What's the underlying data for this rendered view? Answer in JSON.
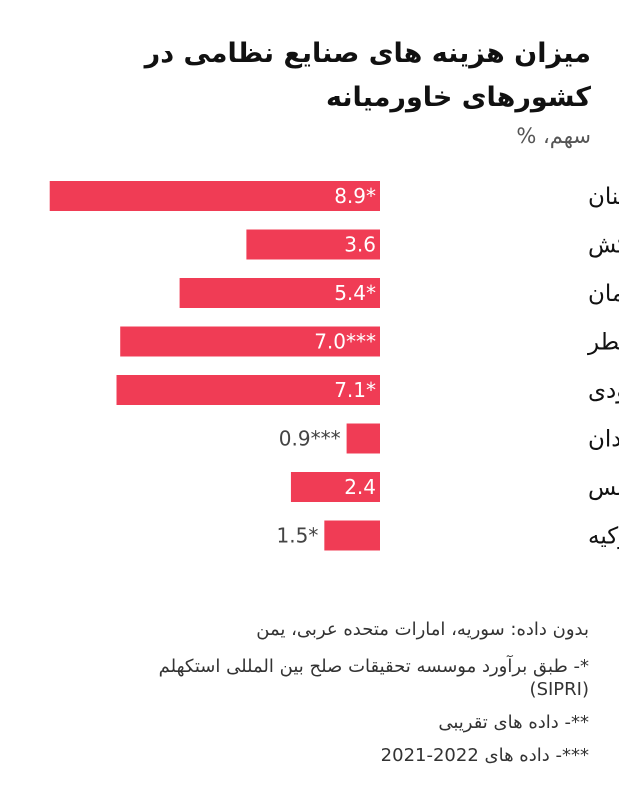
{
  "title": "میزان هزینه های صنایع نظامی در کشورهای خاورمیانه",
  "subtitle": "سهم، %",
  "chart_data": {
    "type": "bar",
    "orientation": "horizontal",
    "title": "میزان هزینه های صنایع نظامی در کشورهای خاورمیانه",
    "unit": "سهم، %",
    "categories": [
      "لبنان",
      "مراکش",
      "عمان",
      "قطر",
      "عربستان سعودی",
      "سودان",
      "تونس",
      "ترکیه"
    ],
    "values": [
      8.9,
      3.6,
      5.4,
      7.0,
      7.1,
      0.9,
      2.4,
      1.5
    ],
    "value_labels": [
      "8.9*",
      "3.6",
      "5.4*",
      "7.0***",
      "7.1*",
      "0.9***",
      "2.4",
      "1.5*"
    ],
    "xlim": [
      0,
      9
    ],
    "bar_color": "#f03c55",
    "grid": false
  },
  "notes": [
    "بدون داده: سوریه، امارات متحده عربی، یمن",
    "*- طبق برآورد موسسه تحقیقات صلح بین المللی استکهلم (SIPRI)",
    "**- داده های تقریبی",
    "***- داده های 2022-2021"
  ]
}
